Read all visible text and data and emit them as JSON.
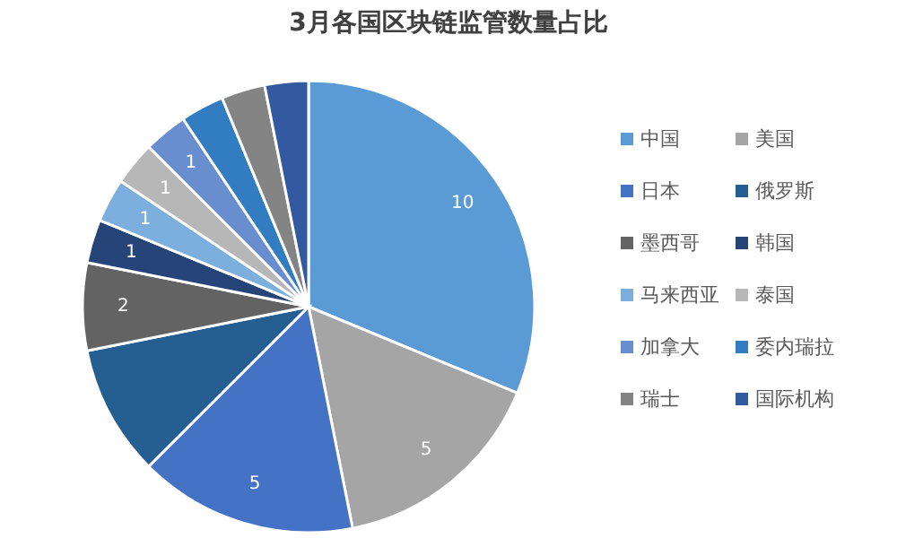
{
  "chart_data": {
    "type": "pie",
    "title": "3月各国区块链监管数量占比",
    "categories": [
      "中国",
      "美国",
      "日本",
      "俄罗斯",
      "墨西哥",
      "韩国",
      "马来西亚",
      "泰国",
      "加拿大",
      "委内瑞拉",
      "瑞士",
      "国际机构"
    ],
    "values": [
      10,
      5,
      5,
      3,
      2,
      1,
      1,
      1,
      1,
      1,
      1,
      1
    ],
    "value_labels": [
      "10",
      "5",
      "5",
      null,
      "2",
      "1",
      "1",
      "1",
      "1",
      null,
      null,
      null
    ],
    "colors": [
      "#5b9bd5",
      "#a5a5a5",
      "#4472c4",
      "#255e91",
      "#636363",
      "#264478",
      "#7cafdd",
      "#b7b7b7",
      "#698ed0",
      "#327dc2",
      "#848484",
      "#335aa1"
    ],
    "legend": "right"
  }
}
